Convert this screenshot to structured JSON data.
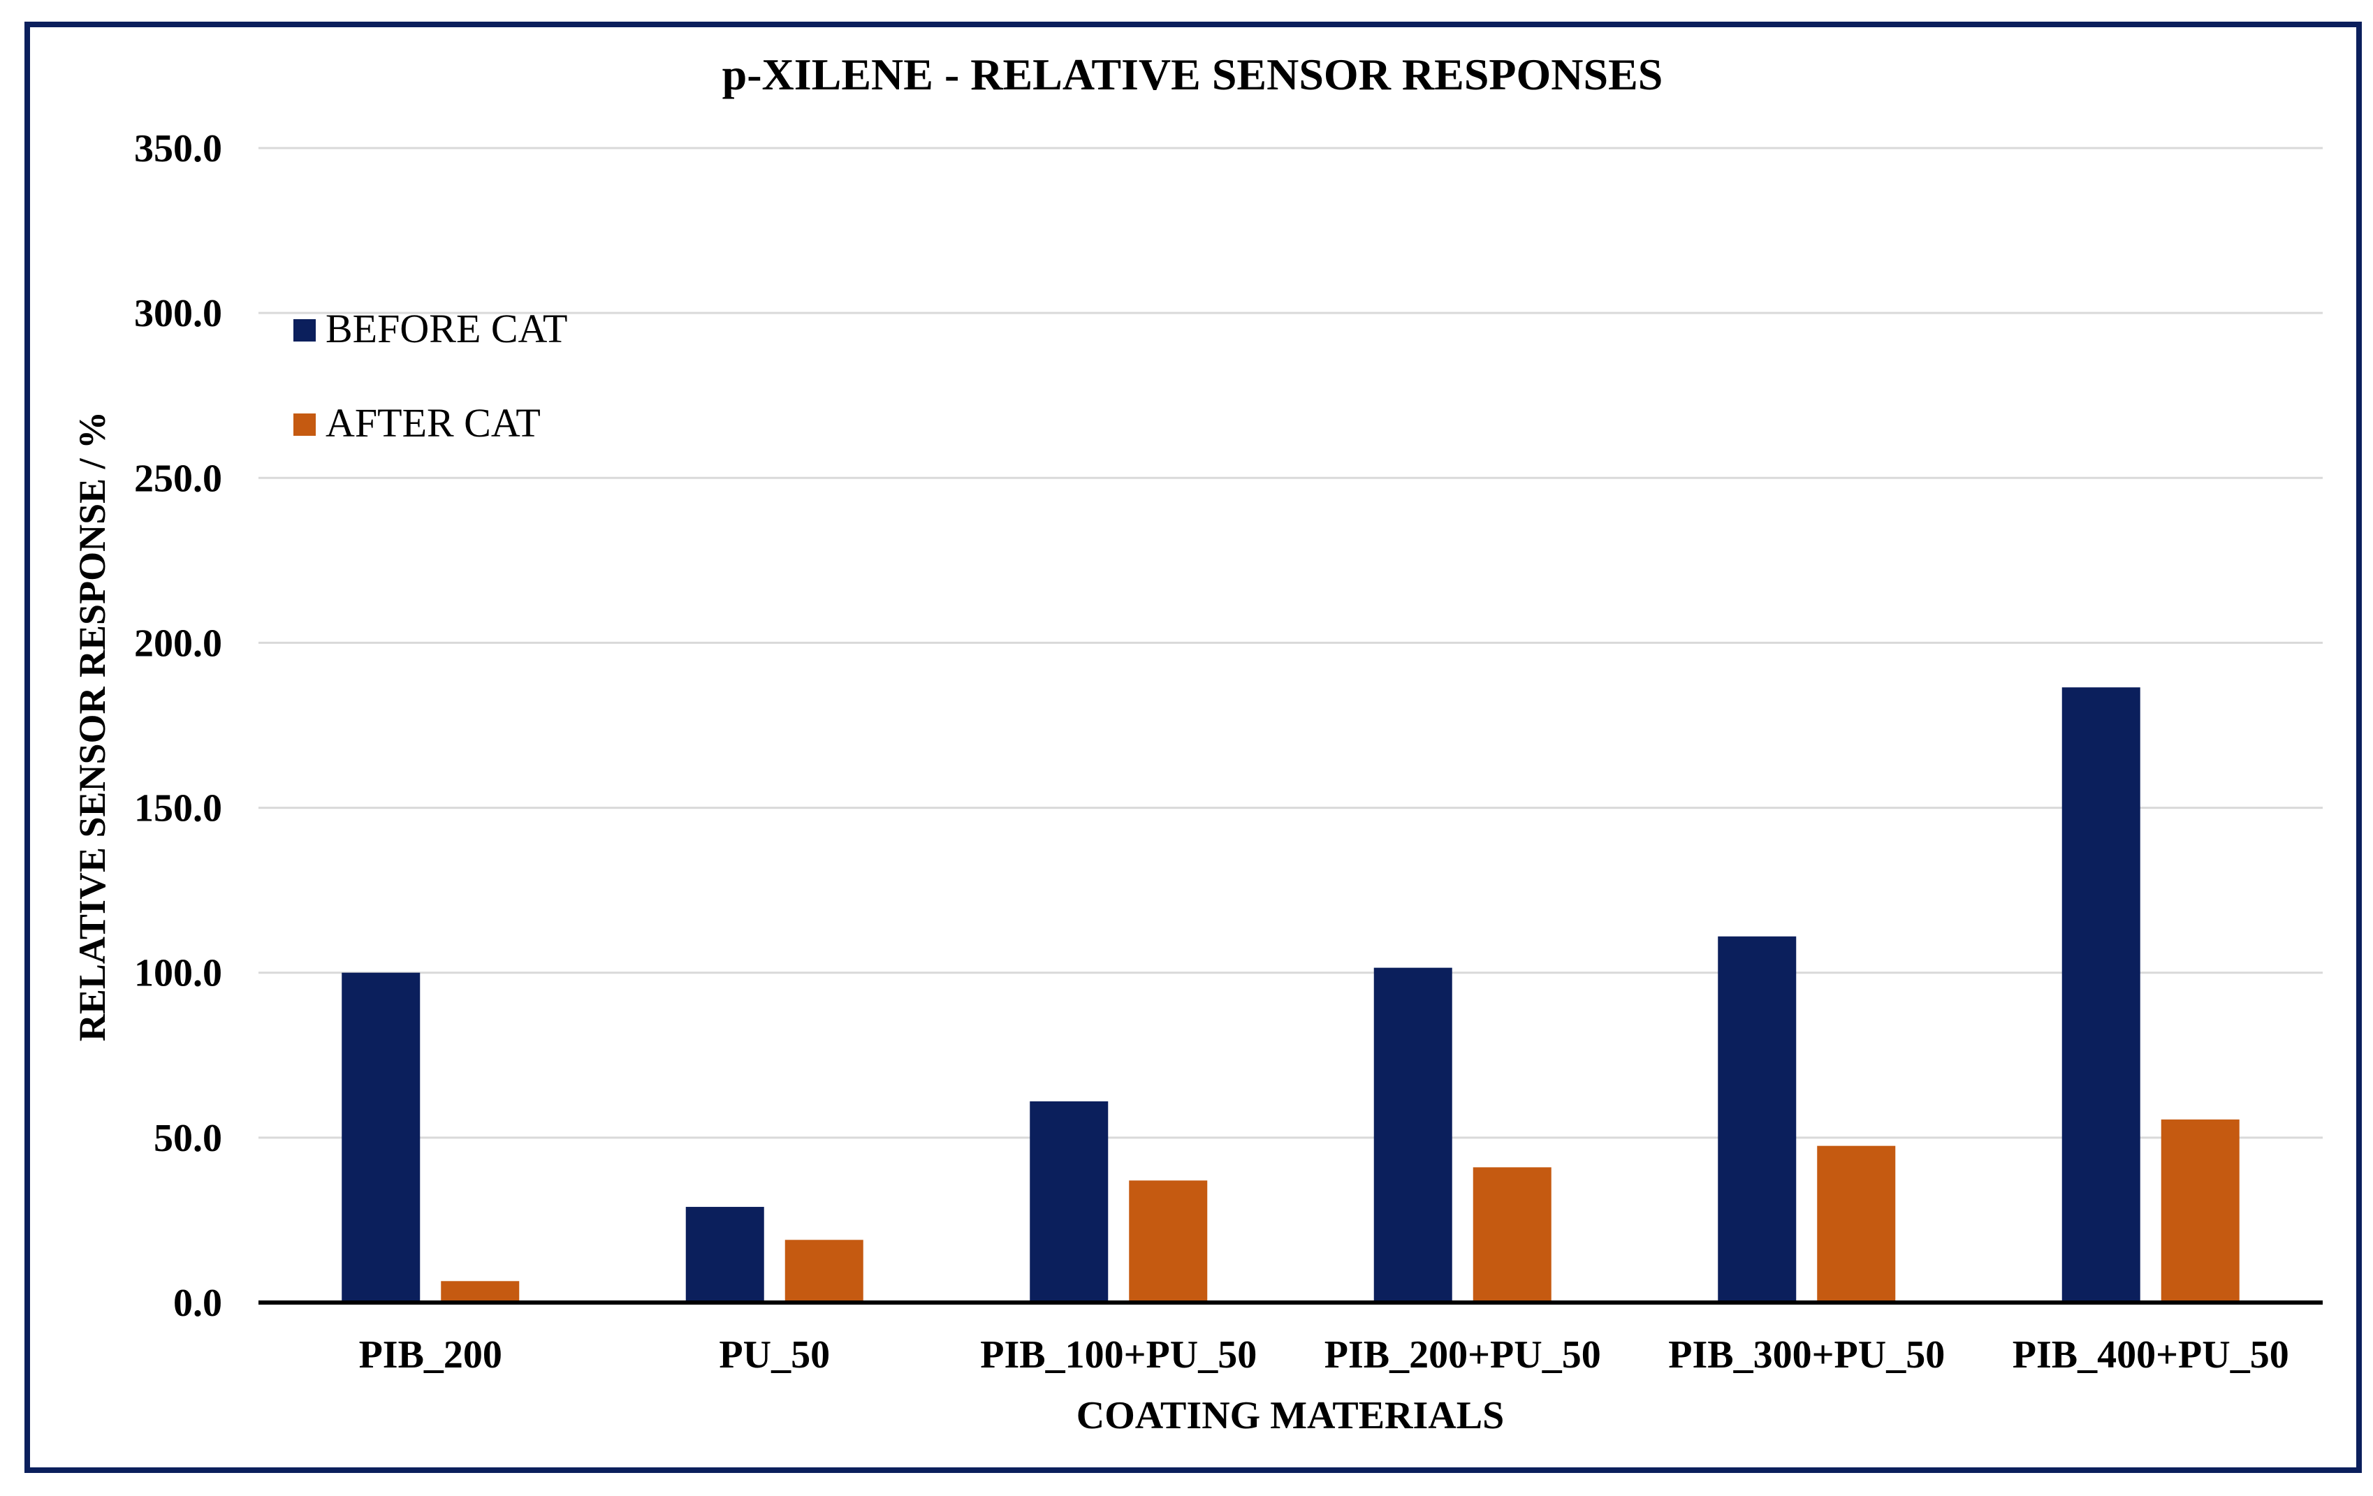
{
  "chart_data": {
    "type": "bar",
    "title": "p-XILENE - RELATIVE SENSOR RESPONSES",
    "xlabel": "COATING MATERIALS",
    "ylabel": "RELATIVE SENSOR RESPONSE / %",
    "categories": [
      "PIB_200",
      "PU_50",
      "PIB_100+PU_50",
      "PIB_200+PU_50",
      "PIB_300+PU_50",
      "PIB_400+PU_50"
    ],
    "series": [
      {
        "name": "BEFORE CAT",
        "color": "#0b1f5c",
        "values": [
          100.0,
          29.0,
          61.0,
          101.5,
          111.0,
          186.5
        ]
      },
      {
        "name": "AFTER CAT",
        "color": "#c55a11",
        "values": [
          6.5,
          19.0,
          37.0,
          41.0,
          47.5,
          55.5
        ]
      }
    ],
    "ylim": [
      0,
      350
    ],
    "yticks": [
      "0.0",
      "50.0",
      "100.0",
      "150.0",
      "200.0",
      "250.0",
      "300.0",
      "350.0"
    ],
    "grid": true,
    "legend_position": "top-left",
    "frame_color": "#0b1f5c"
  }
}
